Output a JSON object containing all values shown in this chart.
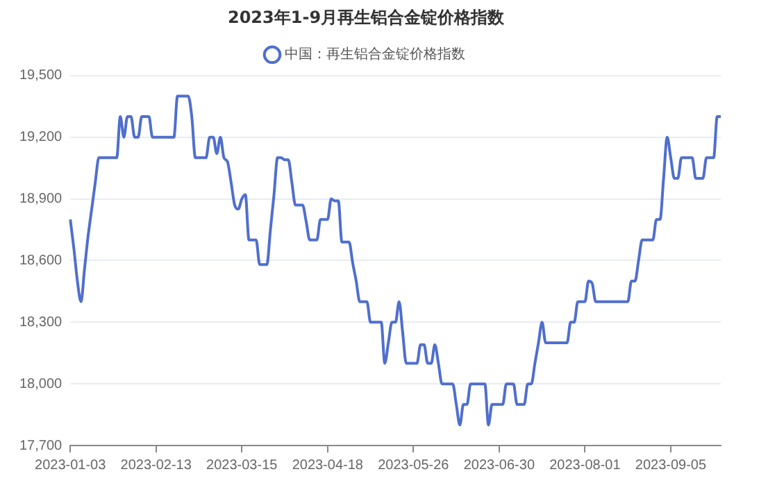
{
  "chart_data": {
    "type": "line",
    "title": "2023年1-9月再生铝合金锭价格指数",
    "categories": [
      "2023-01-03",
      null,
      null,
      null,
      null,
      null,
      null,
      null,
      null,
      null,
      null,
      null,
      null,
      null,
      null,
      null,
      null,
      null,
      null,
      null,
      null,
      null,
      null,
      null,
      "2023-02-13",
      null,
      null,
      null,
      null,
      null,
      null,
      null,
      null,
      null,
      null,
      null,
      null,
      null,
      null,
      null,
      null,
      null,
      null,
      null,
      null,
      null,
      null,
      null,
      "2023-03-15",
      null,
      null,
      null,
      null,
      null,
      null,
      null,
      null,
      null,
      null,
      null,
      null,
      null,
      null,
      null,
      null,
      null,
      null,
      null,
      null,
      null,
      null,
      null,
      "2023-04-18",
      null,
      null,
      null,
      null,
      null,
      null,
      null,
      null,
      null,
      null,
      null,
      null,
      null,
      null,
      null,
      null,
      null,
      null,
      null,
      null,
      null,
      null,
      null,
      "2023-05-26",
      null,
      null,
      null,
      null,
      null,
      null,
      null,
      null,
      null,
      null,
      null,
      null,
      null,
      null,
      null,
      null,
      null,
      null,
      null,
      null,
      null,
      null,
      null,
      "2023-06-30",
      null,
      null,
      null,
      null,
      null,
      null,
      null,
      null,
      null,
      null,
      null,
      null,
      null,
      null,
      null,
      null,
      null,
      null,
      null,
      null,
      null,
      null,
      null,
      "2023-08-01",
      null,
      null,
      null,
      null,
      null,
      null,
      null,
      null,
      null,
      null,
      null,
      null,
      null,
      null,
      null,
      null,
      null,
      null,
      null,
      null,
      null,
      null,
      null,
      "2023-09-05",
      null,
      null,
      null,
      null,
      null,
      null,
      null,
      null,
      null,
      null,
      null,
      null,
      null,
      null
    ],
    "series": [
      {
        "name": "中国：再生铝合金锭价格指数",
        "color": "#4f6fce",
        "values": [
          18800,
          18660,
          18500,
          18400,
          18560,
          18720,
          18850,
          18980,
          19100,
          19100,
          19100,
          19100,
          19100,
          19100,
          19300,
          19200,
          19300,
          19300,
          19200,
          19200,
          19300,
          19300,
          19300,
          19200,
          19200,
          19200,
          19200,
          19200,
          19200,
          19200,
          19400,
          19400,
          19400,
          19400,
          19300,
          19100,
          19100,
          19100,
          19100,
          19200,
          19200,
          19120,
          19200,
          19100,
          19080,
          18980,
          18870,
          18850,
          18900,
          18920,
          18700,
          18700,
          18700,
          18580,
          18580,
          18580,
          18750,
          18920,
          19100,
          19100,
          19090,
          19090,
          18980,
          18870,
          18870,
          18870,
          18790,
          18700,
          18700,
          18700,
          18800,
          18800,
          18800,
          18900,
          18890,
          18890,
          18690,
          18690,
          18690,
          18590,
          18500,
          18400,
          18400,
          18400,
          18300,
          18300,
          18300,
          18300,
          18100,
          18200,
          18300,
          18300,
          18400,
          18250,
          18100,
          18100,
          18100,
          18100,
          18190,
          18190,
          18100,
          18100,
          18190,
          18100,
          18000,
          18000,
          18000,
          18000,
          17900,
          17800,
          17900,
          17900,
          18000,
          18000,
          18000,
          18000,
          18000,
          17800,
          17900,
          17900,
          17900,
          17900,
          18000,
          18000,
          18000,
          17900,
          17900,
          17900,
          18000,
          18000,
          18100,
          18200,
          18300,
          18200,
          18200,
          18200,
          18200,
          18200,
          18200,
          18200,
          18300,
          18300,
          18400,
          18400,
          18400,
          18500,
          18490,
          18400,
          18400,
          18400,
          18400,
          18400,
          18400,
          18400,
          18400,
          18400,
          18400,
          18500,
          18500,
          18600,
          18700,
          18700,
          18700,
          18700,
          18800,
          18800,
          19000,
          19200,
          19100,
          19000,
          19000,
          19100,
          19100,
          19100,
          19100,
          19000,
          19000,
          19000,
          19100,
          19100,
          19100,
          19300,
          19300
        ]
      }
    ],
    "ylim": [
      17700,
      19500
    ],
    "yticks": [
      {
        "value": 17700,
        "label": "17,700"
      },
      {
        "value": 18000,
        "label": "18,000"
      },
      {
        "value": 18300,
        "label": "18,300"
      },
      {
        "value": 18600,
        "label": "18,600"
      },
      {
        "value": 18900,
        "label": "18,900"
      },
      {
        "value": 19200,
        "label": "19,200"
      },
      {
        "value": 19500,
        "label": "19,500"
      }
    ],
    "grid": "y",
    "legend": "top"
  }
}
